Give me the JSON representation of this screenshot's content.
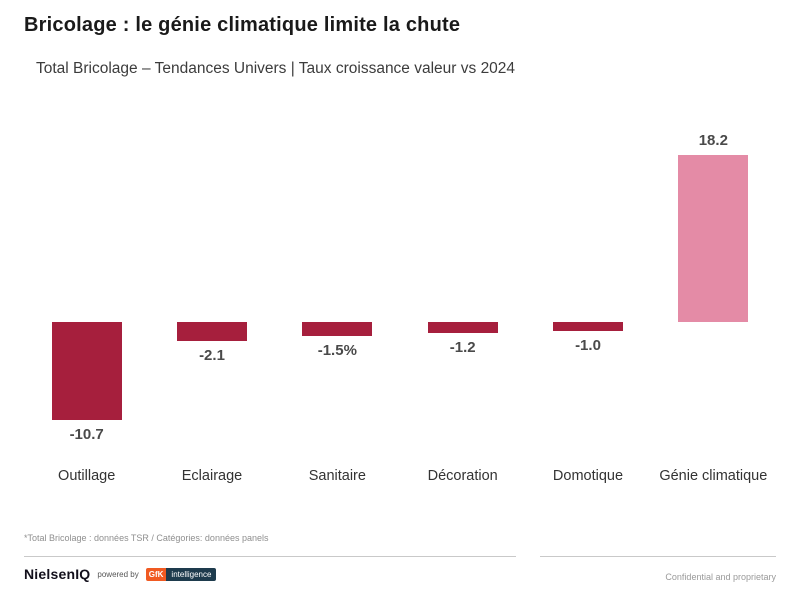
{
  "header": {
    "title": "Bricolage : le génie climatique limite la chute",
    "subtitle": "Total Bricolage – Tendances Univers | Taux croissance valeur vs 2024"
  },
  "chart_data": {
    "type": "bar",
    "title": "Taux croissance valeur vs 2024",
    "categories": [
      "Outillage",
      "Eclairage",
      "Sanitaire",
      "Décoration",
      "Domotique",
      "Génie climatique"
    ],
    "values": [
      -10.7,
      -2.1,
      -1.5,
      -1.2,
      -1.0,
      18.2
    ],
    "value_labels": [
      "-10.7",
      "-2.1",
      "-1.5%",
      "-1.2",
      "-1.0",
      "18.2"
    ],
    "ylim": [
      -12,
      20
    ],
    "grid": false,
    "legend": "none",
    "colors": {
      "negative_bar": "#a61f3d",
      "positive_bar": "#e48ba6"
    }
  },
  "footnote": "*Total Bricolage : données TSR  /  Catégories: données panels",
  "footer": {
    "brand": "NielsenIQ",
    "powered_by": "powered by",
    "gfk": "GfK",
    "gfk_suffix": "intelligence",
    "confidential": "Confidential and proprietary"
  }
}
